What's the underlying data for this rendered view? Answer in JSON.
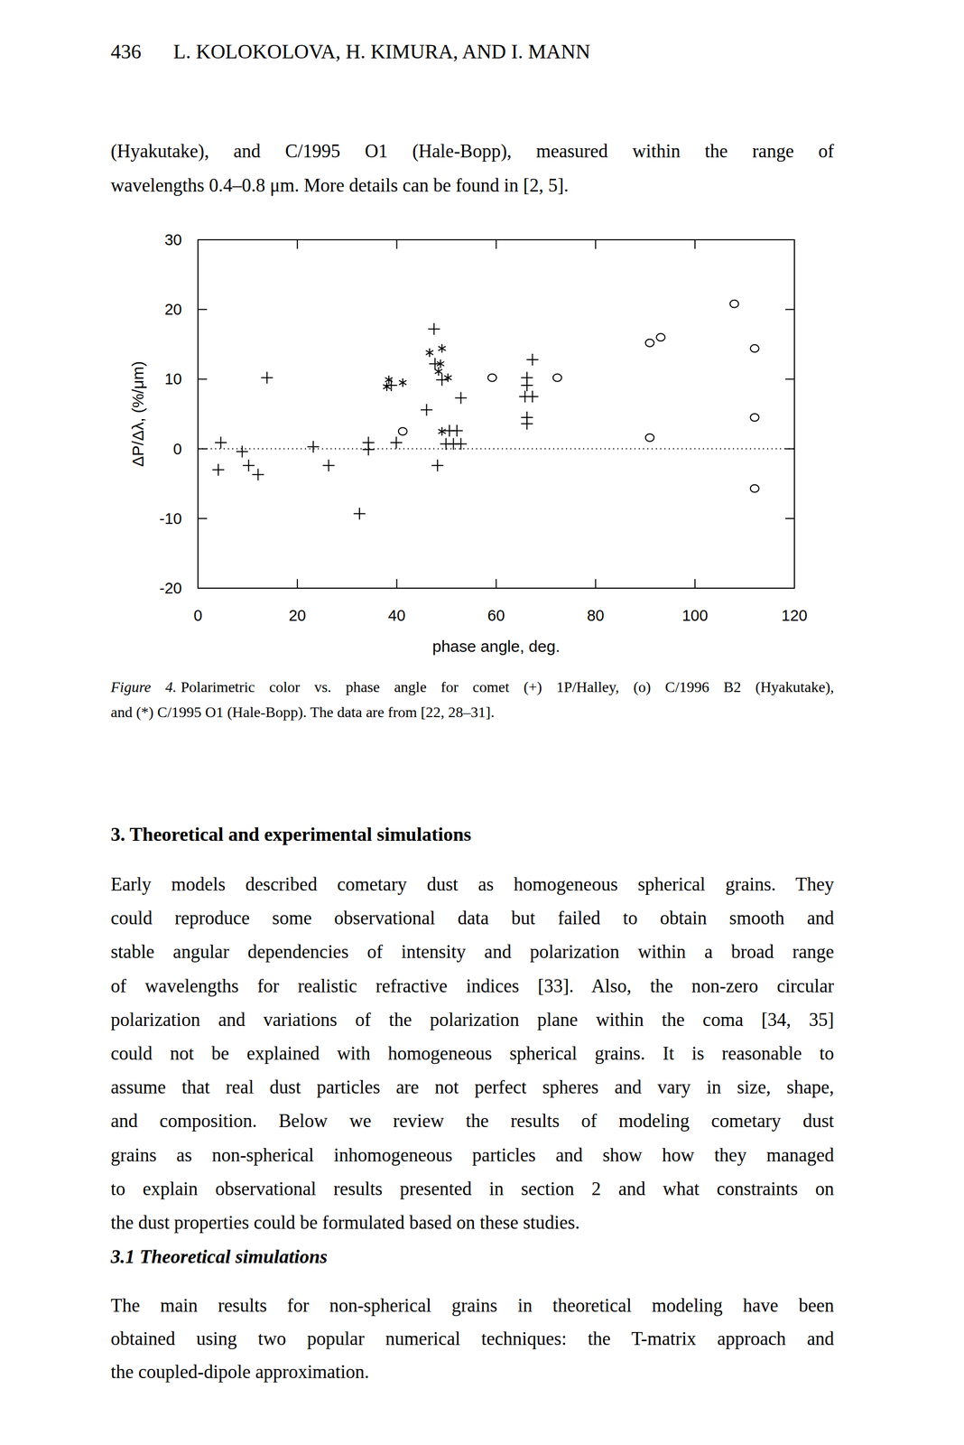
{
  "page": {
    "header": {
      "page_number": "436",
      "authors": "L. KOLOKOLOVA, H. KIMURA, AND I. MANN"
    },
    "intro_lines": [
      "(Hyakutake), and C/1995 O1 (Hale-Bopp), measured within the range of",
      "wavelengths 0.4–0.8 μm. More details can be found in [2, 5]."
    ],
    "caption": {
      "label": "Figure 4.",
      "lines": [
        "Polarimetric color vs. phase angle for comet (+) 1P/Halley, (o) C/1996 B2 (Hyakutake),",
        "and (*) C/1995 O1 (Hale-Bopp). The data are from [22, 28–31]."
      ]
    },
    "section": {
      "heading": "3. Theoretical and experimental simulations",
      "lines": [
        "Early models described cometary dust as homogeneous spherical grains. They",
        "could reproduce some observational data but failed to obtain smooth and",
        "stable angular dependencies of intensity and polarization within a broad range",
        "of wavelengths for realistic refractive indices [33]. Also, the non-zero circular",
        "polarization and variations of the polarization plane within the coma [34, 35]",
        "could not be explained with homogeneous spherical grains. It is reasonable to",
        "assume that real dust particles are not perfect spheres and vary in size, shape,",
        "and composition. Below we review the results of modeling cometary dust",
        "grains as non-spherical inhomogeneous particles and show how they managed",
        "to explain observational results presented in section 2 and what constraints on",
        "the dust properties could be formulated based on these studies."
      ]
    },
    "subsection": {
      "heading": "3.1 Theoretical simulations",
      "lines": [
        "The main results for non-spherical grains in theoretical modeling have been",
        "obtained using two popular numerical techniques: the T-matrix approach and",
        "the coupled-dipole approximation."
      ]
    }
  },
  "chart_data": {
    "type": "scatter",
    "x_label": "phase angle, deg.",
    "y_label": "ΔP/Δλ, (%/μm)",
    "xlim": [
      0,
      120
    ],
    "xticks": [
      0,
      20,
      40,
      60,
      80,
      100,
      120
    ],
    "ylim": [
      -20,
      30
    ],
    "yticks": [
      -20,
      -10,
      0,
      10,
      20,
      30
    ],
    "hline": 0,
    "series": [
      {
        "marker": "plus",
        "color": "#000000",
        "x": [
          4.6,
          4.1,
          8.9,
          10.2,
          12.1,
          13.9,
          23.2,
          26.3,
          32.5,
          34.3,
          34.3,
          38.9,
          39.9,
          47.5,
          47.7,
          49.1,
          46.0,
          52.9,
          48.2,
          50.6,
          52.1,
          49.9,
          51.4,
          52.9,
          67.3,
          66.2,
          66.2,
          65.8,
          67.3,
          66.2,
          66.2
        ],
        "values": [
          0.9,
          -3.0,
          -0.4,
          -2.4,
          -3.7,
          10.2,
          0.3,
          -2.4,
          -9.3,
          0.9,
          -0.1,
          9.1,
          0.9,
          17.2,
          12.2,
          9.9,
          5.6,
          7.3,
          -2.4,
          2.6,
          2.6,
          0.7,
          0.7,
          0.7,
          12.8,
          10.2,
          9.1,
          7.5,
          7.5,
          4.5,
          3.6
        ]
      },
      {
        "marker": "circle",
        "color": "#000000",
        "x": [
          41.2,
          59.2,
          72.3,
          90.9,
          93.1,
          90.9,
          107.9,
          112.0,
          112.0,
          112.0
        ],
        "values": [
          2.5,
          10.2,
          10.2,
          15.2,
          16.0,
          1.6,
          20.8,
          14.4,
          4.5,
          -5.7
        ]
      },
      {
        "marker": "asterisk",
        "color": "#000000",
        "x": [
          46.6,
          49.1,
          48.8,
          48.4,
          50.3,
          38.4,
          38.0,
          41.2,
          49.1
        ],
        "values": [
          13.8,
          14.4,
          12.2,
          11.1,
          10.2,
          9.9,
          8.9,
          9.5,
          2.5
        ]
      }
    ]
  }
}
